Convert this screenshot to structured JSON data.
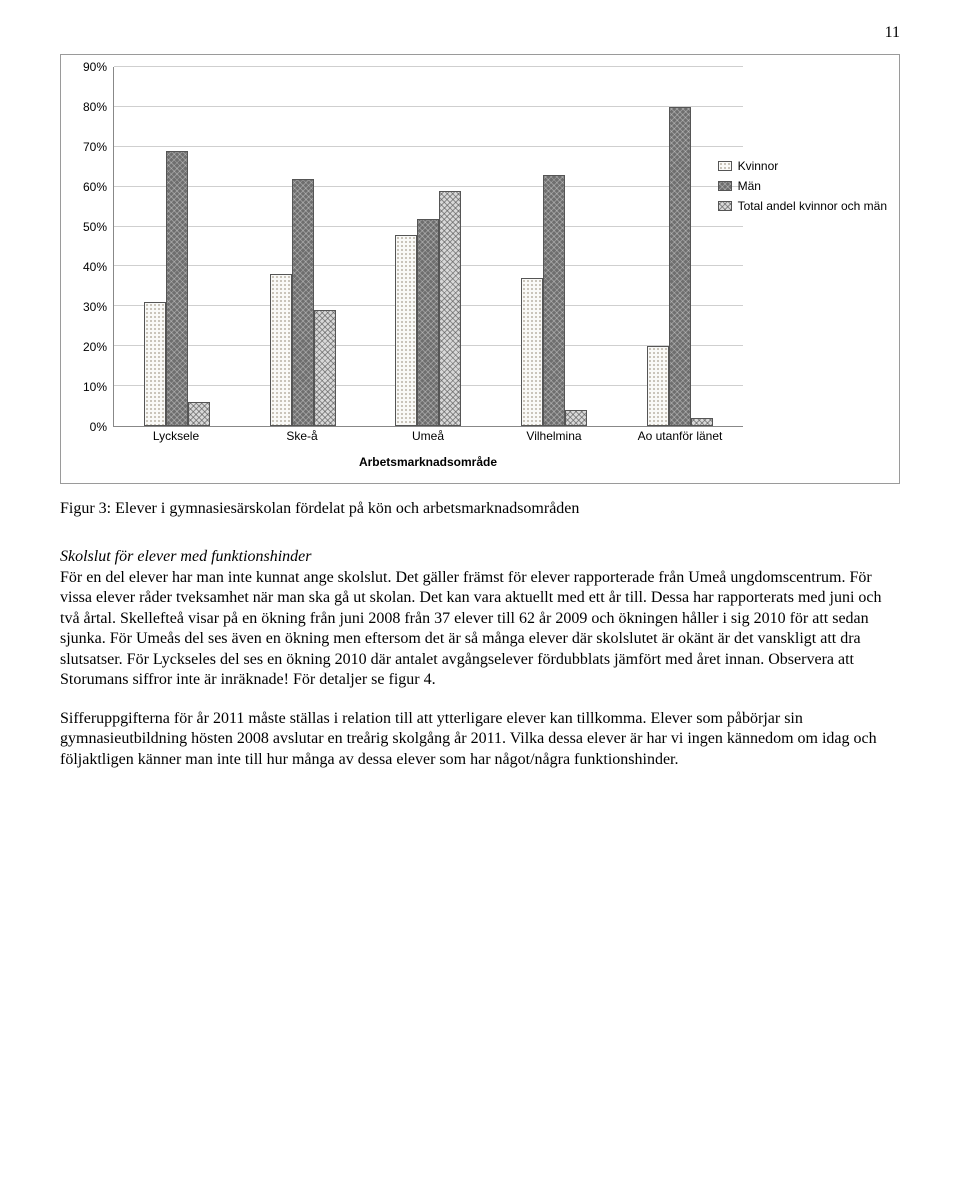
{
  "page": {
    "number": "11"
  },
  "chart": {
    "type": "bar",
    "ymax": 90,
    "ytick_step": 10,
    "yticks": [
      "0%",
      "10%",
      "20%",
      "30%",
      "40%",
      "50%",
      "60%",
      "70%",
      "80%",
      "90%"
    ],
    "xaxis_title": "Arbetsmarknadsområde",
    "categories": [
      "Lycksele",
      "Ske-å",
      "Umeå",
      "Vilhelmina",
      "Ao utanför länet"
    ],
    "series": [
      {
        "name": "Kvinnor",
        "pattern": "hatch-dots"
      },
      {
        "name": "Män",
        "pattern": "hatch-cross-dark"
      },
      {
        "name": "Total andel kvinnor och män",
        "pattern": "hatch-cross-light"
      }
    ],
    "values": [
      [
        31,
        69,
        6
      ],
      [
        38,
        62,
        29
      ],
      [
        48,
        52,
        59
      ],
      [
        37,
        63,
        4
      ],
      [
        20,
        80,
        2
      ]
    ],
    "grid_color": "#cfcfcf",
    "axis_color": "#888888",
    "background_color": "#ffffff"
  },
  "caption": "Figur 3: Elever i gymnasiesärskolan fördelat på kön och arbetsmarknadsområden",
  "section_heading": "Skolslut för elever med funktionshinder",
  "paragraph1": "För en del elever har man inte kunnat ange skolslut. Det gäller främst för elever rapporterade från Umeå ungdomscentrum. För vissa elever råder tveksamhet när man ska gå ut skolan. Det kan vara aktuellt med ett år till. Dessa har rapporterats med juni och två årtal. Skellefteå visar på en ökning från juni 2008 från 37 elever till 62 år 2009 och ökningen håller i sig 2010 för att sedan sjunka. För Umeås del ses även en ökning men eftersom det är så många elever där skolslutet är okänt är det vanskligt att dra slutsatser. För Lyckseles del ses en ökning 2010 där antalet avgångselever fördubblats jämfört med året innan. Observera att Storumans siffror inte är inräknade! För detaljer se figur 4.",
  "paragraph2": "Sifferuppgifterna för år 2011 måste ställas i relation till att ytterligare elever kan tillkomma. Elever som påbörjar sin gymnasieutbildning hösten 2008 avslutar en treårig skolgång år 2011. Vilka dessa elever är har vi ingen kännedom om idag och följaktligen känner man inte till hur många av dessa elever som har något/några funktionshinder."
}
